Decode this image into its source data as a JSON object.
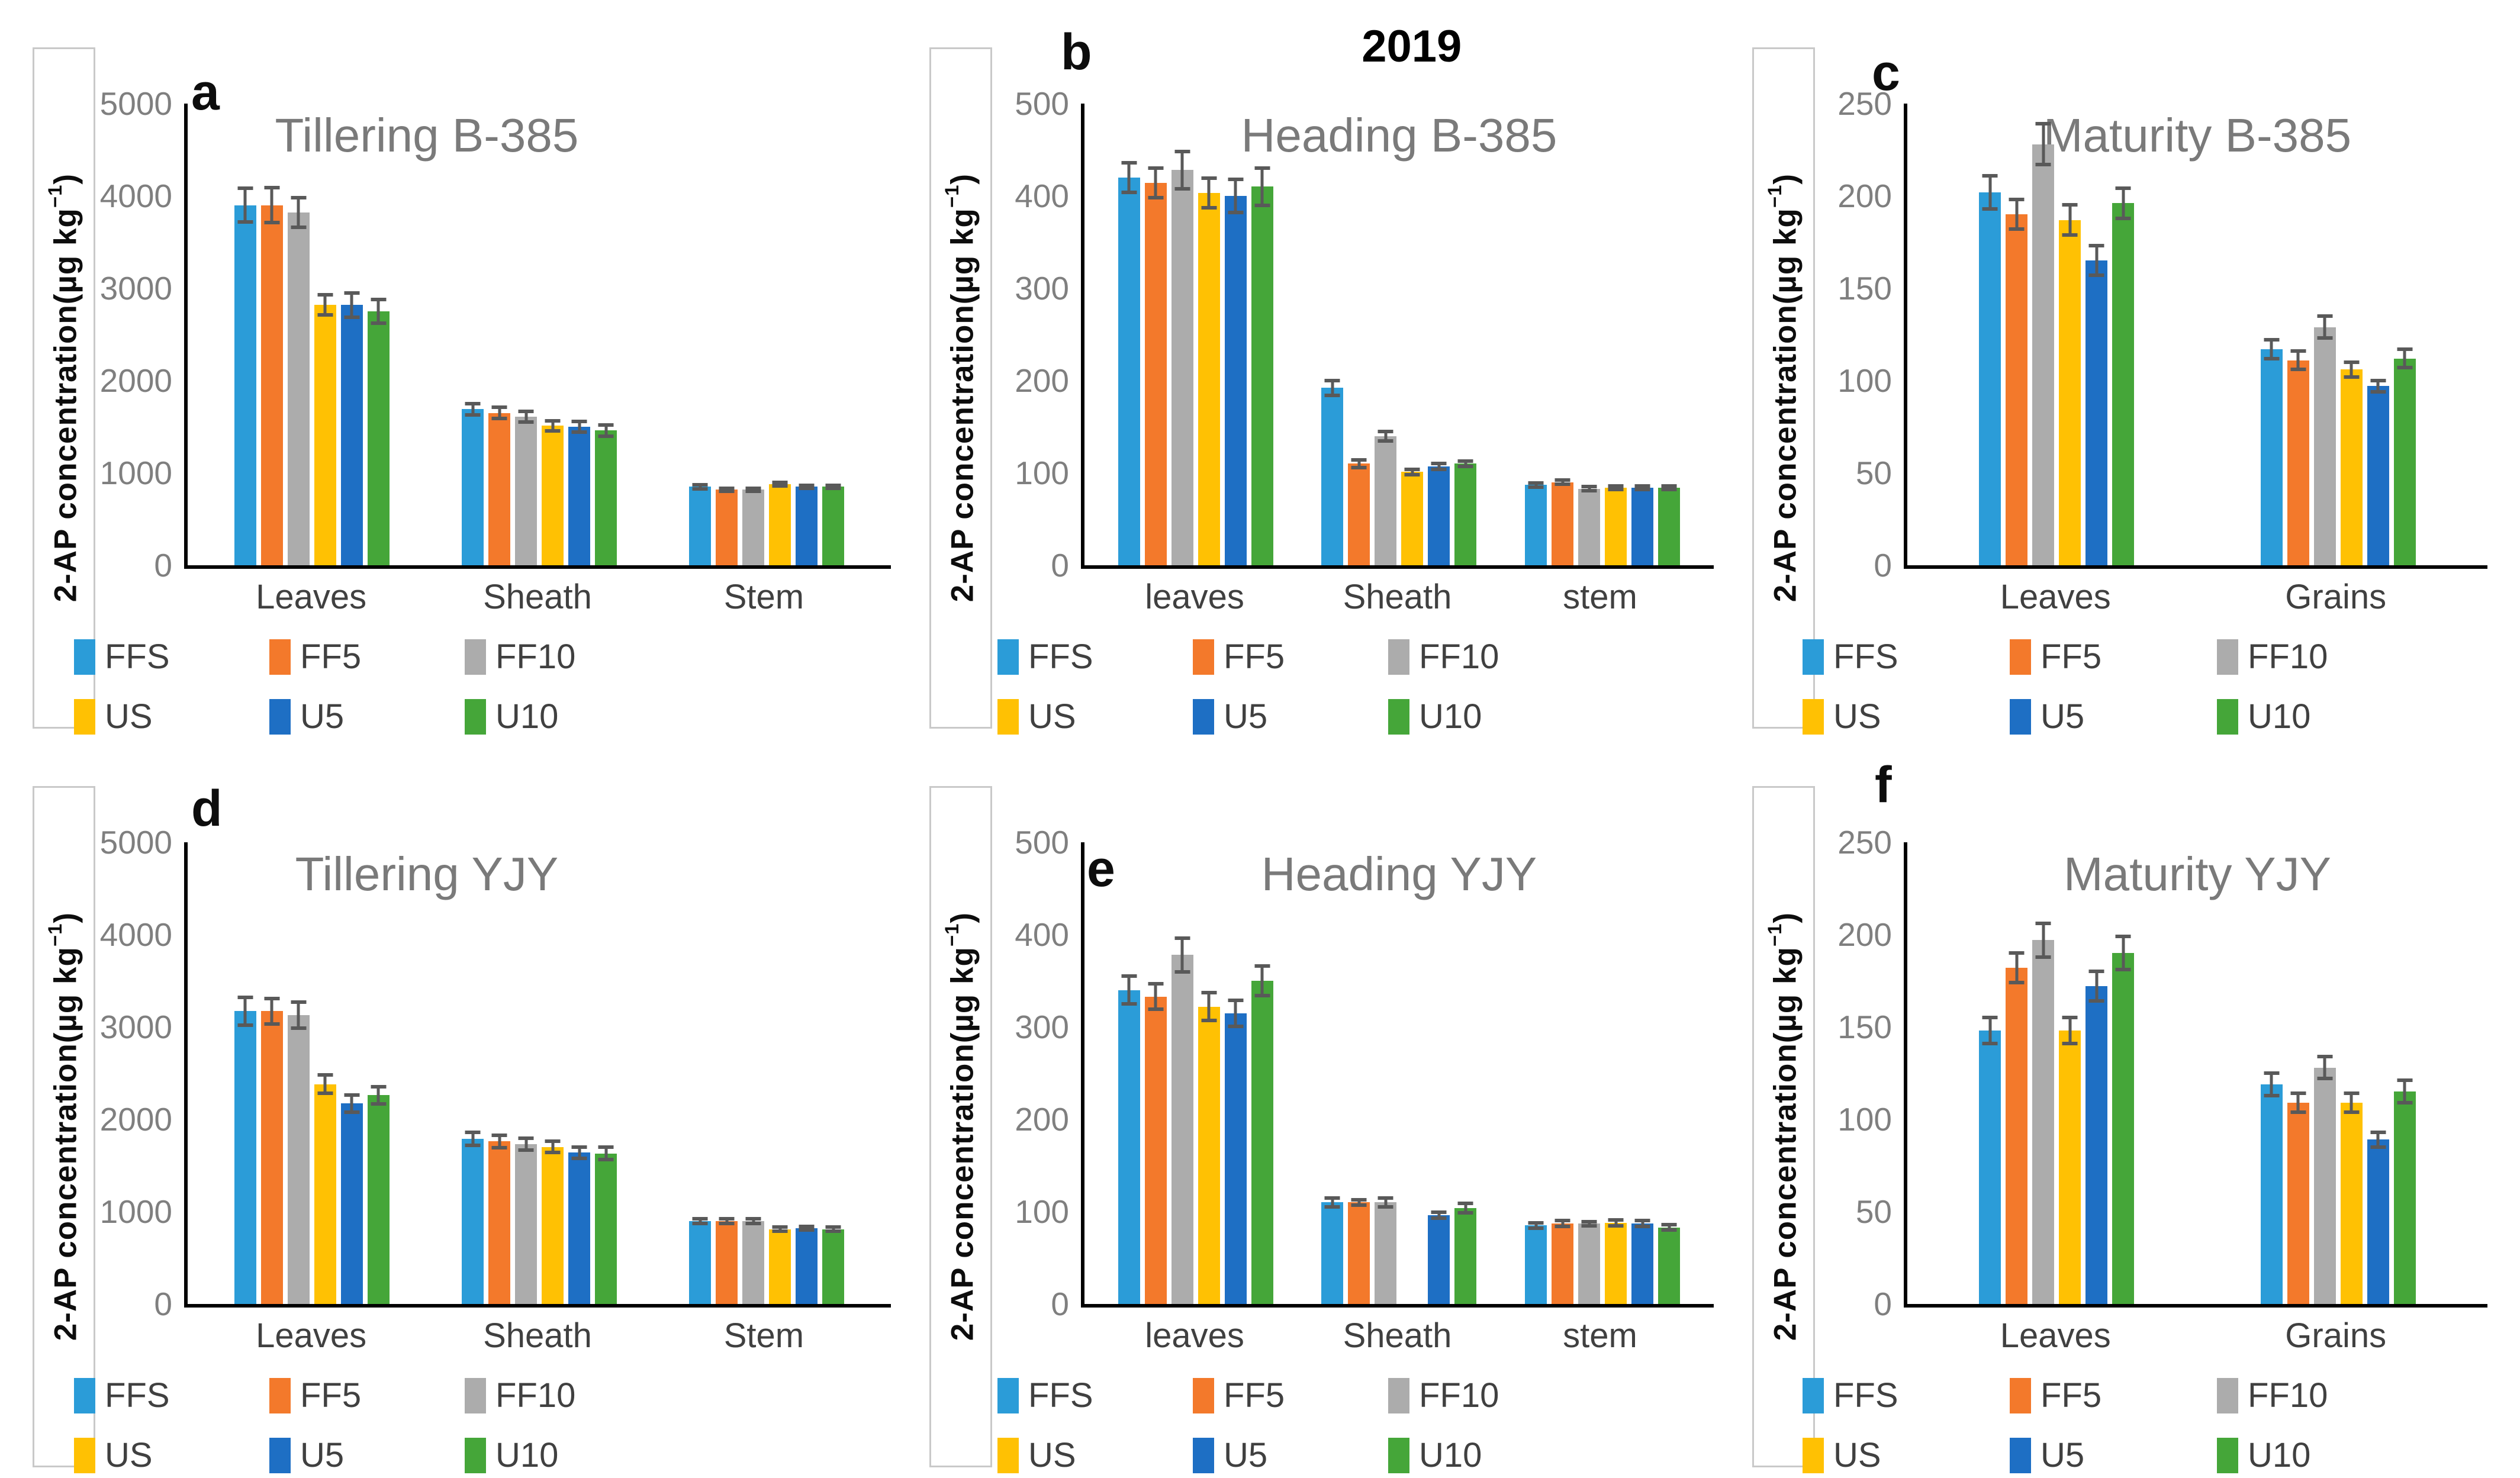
{
  "figure": {
    "year_label": "2019",
    "y_axis_title_main": "2-AP concentration(µg kg",
    "y_axis_title_sup": "−1",
    "y_axis_title_close": ")",
    "series": [
      {
        "name": "FFS",
        "color": "#2B9CD8"
      },
      {
        "name": "FF5",
        "color": "#F3792B"
      },
      {
        "name": "FF10",
        "color": "#ACACAC"
      },
      {
        "name": "US",
        "color": "#FFC103"
      },
      {
        "name": "U5",
        "color": "#1E6FC4"
      },
      {
        "name": "U10",
        "color": "#45A639"
      }
    ],
    "colors": {
      "axis": "#000000",
      "error_bar": "#595959",
      "title_gray": "#7a7a7a",
      "tick_gray": "#7f7f7f",
      "label_gray": "#404040",
      "ytitle_box_border": "#c9c9c9"
    }
  },
  "chart_data": [
    {
      "id": "a",
      "type": "bar",
      "letter": "a",
      "title": "Tillering B-385",
      "ylabel": "2-AP concentration(µg kg⁻¹)",
      "ylim": [
        0,
        5000
      ],
      "yticks": [
        0,
        1000,
        2000,
        3000,
        4000,
        5000
      ],
      "grid": false,
      "legend_position": "bottom",
      "categories": [
        "Leaves",
        "Sheath",
        "Stem"
      ],
      "series": [
        {
          "name": "FFS",
          "values": [
            3900,
            1690,
            850
          ],
          "errors": [
            200,
            80,
            40
          ]
        },
        {
          "name": "FF5",
          "values": [
            3900,
            1650,
            820
          ],
          "errors": [
            210,
            80,
            35
          ]
        },
        {
          "name": "FF10",
          "values": [
            3820,
            1610,
            820
          ],
          "errors": [
            180,
            75,
            35
          ]
        },
        {
          "name": "US",
          "values": [
            2820,
            1510,
            880
          ],
          "errors": [
            130,
            75,
            40
          ]
        },
        {
          "name": "U5",
          "values": [
            2820,
            1500,
            850
          ],
          "errors": [
            150,
            80,
            35
          ]
        },
        {
          "name": "U10",
          "values": [
            2750,
            1460,
            850
          ],
          "errors": [
            150,
            80,
            35
          ]
        }
      ]
    },
    {
      "id": "b",
      "type": "bar",
      "letter": "b",
      "title": "Heading B-385",
      "ylabel": "2-AP concentration(µg kg⁻¹)",
      "ylim": [
        0,
        500
      ],
      "yticks": [
        0,
        100,
        200,
        300,
        400,
        500
      ],
      "grid": false,
      "legend_position": "bottom",
      "categories": [
        "leaves",
        "Sheath",
        "stem"
      ],
      "series": [
        {
          "name": "FFS",
          "values": [
            420,
            192,
            87
          ],
          "errors": [
            18,
            10,
            4
          ]
        },
        {
          "name": "FF5",
          "values": [
            414,
            110,
            90
          ],
          "errors": [
            18,
            6,
            4
          ]
        },
        {
          "name": "FF10",
          "values": [
            428,
            140,
            83
          ],
          "errors": [
            22,
            7,
            4
          ]
        },
        {
          "name": "US",
          "values": [
            403,
            101,
            84
          ],
          "errors": [
            18,
            5,
            4
          ]
        },
        {
          "name": "U5",
          "values": [
            400,
            107,
            84
          ],
          "errors": [
            20,
            5,
            4
          ]
        },
        {
          "name": "U10",
          "values": [
            410,
            110,
            84
          ],
          "errors": [
            22,
            5,
            4
          ]
        }
      ]
    },
    {
      "id": "c",
      "type": "bar",
      "letter": "c",
      "title": "Maturity B-385",
      "ylabel": "2-AP concentration(µg kg⁻¹)",
      "ylim": [
        0,
        250
      ],
      "yticks": [
        0,
        50,
        100,
        150,
        200,
        250
      ],
      "grid": false,
      "legend_position": "bottom",
      "categories": [
        "Leaves",
        "Grains"
      ],
      "series": [
        {
          "name": "FFS",
          "values": [
            202,
            117
          ],
          "errors": [
            10,
            6
          ]
        },
        {
          "name": "FF5",
          "values": [
            190,
            111
          ],
          "errors": [
            9,
            6
          ]
        },
        {
          "name": "FF10",
          "values": [
            228,
            129
          ],
          "errors": [
            12,
            7
          ]
        },
        {
          "name": "US",
          "values": [
            187,
            106
          ],
          "errors": [
            9,
            5
          ]
        },
        {
          "name": "U5",
          "values": [
            165,
            97
          ],
          "errors": [
            9,
            4
          ]
        },
        {
          "name": "U10",
          "values": [
            196,
            112
          ],
          "errors": [
            9,
            6
          ]
        }
      ]
    },
    {
      "id": "d",
      "type": "bar",
      "letter": "d",
      "title": "Tillering YJY",
      "ylabel": "2-AP concentration(µg kg⁻¹)",
      "ylim": [
        0,
        5000
      ],
      "yticks": [
        0,
        1000,
        2000,
        3000,
        4000,
        5000
      ],
      "grid": false,
      "legend_position": "bottom",
      "categories": [
        "Leaves",
        "Sheath",
        "Stem"
      ],
      "series": [
        {
          "name": "FFS",
          "values": [
            3170,
            1790,
            900
          ],
          "errors": [
            170,
            90,
            45
          ]
        },
        {
          "name": "FF5",
          "values": [
            3170,
            1760,
            900
          ],
          "errors": [
            160,
            85,
            45
          ]
        },
        {
          "name": "FF10",
          "values": [
            3130,
            1730,
            900
          ],
          "errors": [
            160,
            85,
            45
          ]
        },
        {
          "name": "US",
          "values": [
            2380,
            1700,
            810
          ],
          "errors": [
            120,
            80,
            40
          ]
        },
        {
          "name": "U5",
          "values": [
            2170,
            1640,
            820
          ],
          "errors": [
            110,
            80,
            40
          ]
        },
        {
          "name": "U10",
          "values": [
            2260,
            1630,
            810
          ],
          "errors": [
            110,
            85,
            40
          ]
        }
      ]
    },
    {
      "id": "e",
      "type": "bar",
      "letter": "e",
      "title": "Heading YJY",
      "ylabel": "2-AP concentration(µg kg⁻¹)",
      "ylim": [
        0,
        500
      ],
      "yticks": [
        0,
        100,
        200,
        300,
        400,
        500
      ],
      "grid": false,
      "legend_position": "bottom",
      "categories": [
        "leaves",
        "Sheath",
        "stem"
      ],
      "series": [
        {
          "name": "FFS",
          "values": [
            340,
            110,
            85
          ],
          "errors": [
            17,
            7,
            5
          ]
        },
        {
          "name": "FF5",
          "values": [
            333,
            110,
            87
          ],
          "errors": [
            16,
            5,
            5
          ]
        },
        {
          "name": "FF10",
          "values": [
            378,
            110,
            87
          ],
          "errors": [
            20,
            7,
            4
          ]
        },
        {
          "name": "US",
          "values": [
            322,
            null,
            88
          ],
          "errors": [
            17,
            null,
            5
          ]
        },
        {
          "name": "U5",
          "values": [
            315,
            96,
            87
          ],
          "errors": [
            16,
            5,
            5
          ]
        },
        {
          "name": "U10",
          "values": [
            350,
            104,
            83
          ],
          "errors": [
            18,
            7,
            5
          ]
        }
      ]
    },
    {
      "id": "f",
      "type": "bar",
      "letter": "f",
      "title": "Maturity YJY",
      "ylabel": "2-AP concentration(µg kg⁻¹)",
      "ylim": [
        0,
        250
      ],
      "yticks": [
        0,
        50,
        100,
        150,
        200,
        250
      ],
      "grid": false,
      "legend_position": "bottom",
      "categories": [
        "Leaves",
        "Grains"
      ],
      "series": [
        {
          "name": "FFS",
          "values": [
            148,
            119
          ],
          "errors": [
            8,
            7
          ]
        },
        {
          "name": "FF5",
          "values": [
            182,
            109
          ],
          "errors": [
            9,
            6
          ]
        },
        {
          "name": "FF10",
          "values": [
            197,
            128
          ],
          "errors": [
            10,
            7
          ]
        },
        {
          "name": "US",
          "values": [
            148,
            109
          ],
          "errors": [
            8,
            6
          ]
        },
        {
          "name": "U5",
          "values": [
            172,
            89
          ],
          "errors": [
            9,
            5
          ]
        },
        {
          "name": "U10",
          "values": [
            190,
            115
          ],
          "errors": [
            10,
            7
          ]
        }
      ]
    }
  ]
}
